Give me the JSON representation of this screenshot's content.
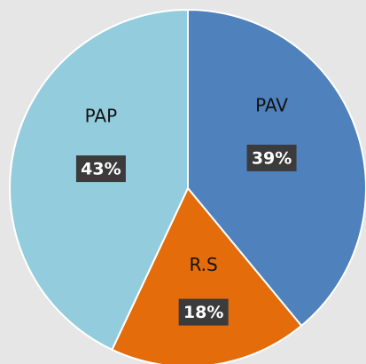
{
  "chart_data": {
    "type": "pie",
    "categories": [
      "PAV",
      "R.S",
      "PAP"
    ],
    "values": [
      39,
      18,
      43
    ],
    "value_labels": [
      "39%",
      "18%",
      "43%"
    ],
    "colors": [
      "#4f81bd",
      "#e46c0a",
      "#93cddd"
    ]
  }
}
